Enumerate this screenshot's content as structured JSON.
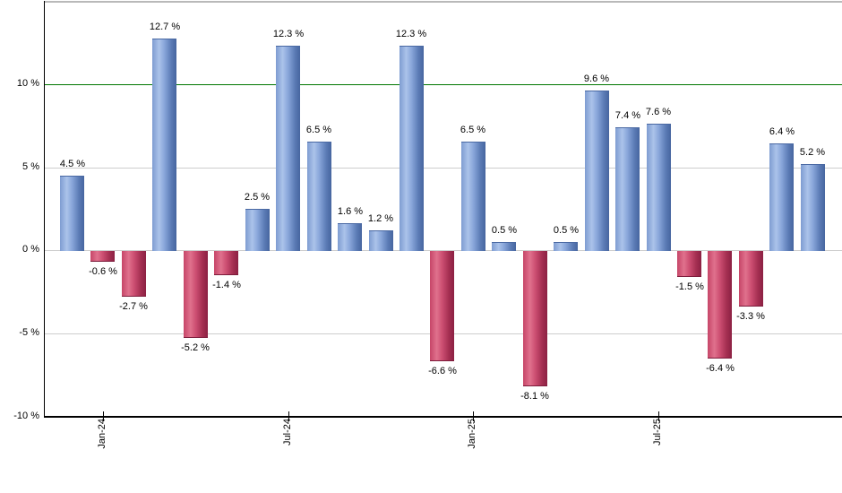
{
  "chart_data": {
    "type": "bar",
    "title": "",
    "xlabel": "",
    "ylabel": "",
    "values": [
      4.5,
      -0.6,
      -2.7,
      12.7,
      -5.2,
      -1.4,
      2.5,
      12.3,
      6.5,
      1.6,
      1.2,
      12.3,
      -6.6,
      6.5,
      0.5,
      -8.1,
      0.5,
      9.6,
      7.4,
      7.6,
      -1.5,
      -6.4,
      -3.3,
      6.4,
      5.2
    ],
    "bar_labels": [
      "4.5 %",
      "-0.6 %",
      "-2.7 %",
      "12.7 %",
      "-5.2 %",
      "-1.4 %",
      "2.5 %",
      "12.3 %",
      "6.5 %",
      "1.6 %",
      "1.2 %",
      "12.3 %",
      "-6.6 %",
      "6.5 %",
      "0.5 %",
      "-8.1 %",
      "0.5 %",
      "9.6 %",
      "7.4 %",
      "7.6 %",
      "-1.5 %",
      "-6.4 %",
      "-3.3 %",
      "6.4 %",
      "5.2 %"
    ],
    "x_ticks": [
      {
        "label": "Jan-24",
        "bar_index": 1
      },
      {
        "label": "Jul-24",
        "bar_index": 7
      },
      {
        "label": "Jan-25",
        "bar_index": 13
      },
      {
        "label": "Jul-25",
        "bar_index": 19
      }
    ],
    "y_ticks": [
      {
        "label": "10 %",
        "value": 10
      },
      {
        "label": "5 %",
        "value": 5
      },
      {
        "label": "0 %",
        "value": 0
      },
      {
        "label": "-5 %",
        "value": -5
      },
      {
        "label": "-10 %",
        "value": -10
      }
    ],
    "ylim": [
      -10,
      14.9
    ],
    "grid": true,
    "legend": false,
    "threshold_line": {
      "value": 10,
      "color": "#007600"
    },
    "colors": {
      "positive_bar_light": "#abc3ea",
      "positive_bar_mid": "#7e9cd1",
      "positive_bar_dark": "#46659f",
      "negative_bar_light": "#e0718d",
      "negative_bar_mid": "#c64568",
      "negative_bar_dark": "#8c2143",
      "gridline": "#cdcdcd",
      "axis": "#000000",
      "top_border": "#b9b9b9",
      "background": "#ffffff"
    }
  }
}
